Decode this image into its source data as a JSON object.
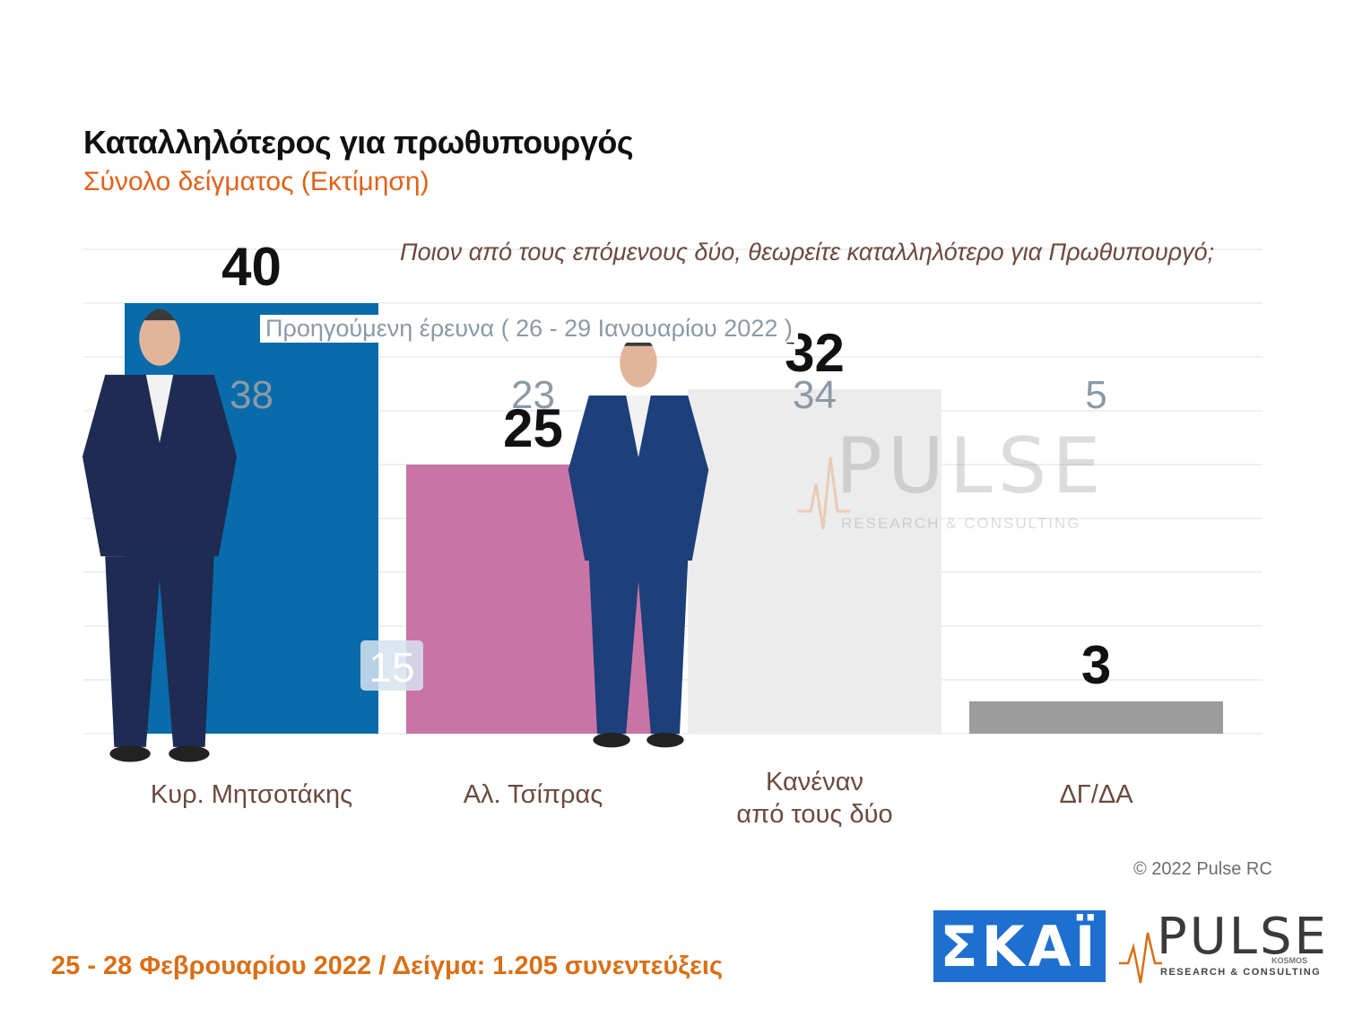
{
  "header": {
    "title": "Καταλληλότερος για πρωθυπουργός",
    "subtitle": "Σύνολο δείγματος   (Εκτίμηση)",
    "question": "Ποιον από τους επόμενους δύο, θεωρείτε καταλληλότερο για Πρωθυπουργό;",
    "previous_label": "Προηγούμενη έρευνα  ( 26 - 29 Ιανουαρίου  2022 )"
  },
  "chart_data": {
    "type": "bar",
    "categories": [
      "Κυρ. Μητσοτάκης",
      "Αλ. Τσίπρας",
      "Κανέναν από τους δύο",
      "ΔΓ/ΔΑ"
    ],
    "category_lines": [
      [
        "Κυρ. Μητσοτάκης"
      ],
      [
        "Αλ. Τσίπρας"
      ],
      [
        "Κανέναν",
        "από τους δύο"
      ],
      [
        "ΔΓ/ΔΑ"
      ]
    ],
    "values": [
      40,
      25,
      32,
      3
    ],
    "previous_values": [
      38,
      23,
      34,
      5
    ],
    "gap_label": "15",
    "bar_colors": [
      "#0a6bab",
      "#c974a7",
      "#ececec",
      "#9c9c9c"
    ],
    "ylim": [
      0,
      45
    ]
  },
  "footer": {
    "copyright": "© 2022 Pulse RC",
    "fieldwork": "25 - 28  Φεβρουαρίου  2022  /  Δείγμα:  1.205 συνεντεύξεις"
  },
  "logos": {
    "skai": "ΣΚΑΪ",
    "pulse_word": "PULSE",
    "pulse_tag": "RESEARCH & CONSULTING",
    "pulse_kosmos": "KOSMOS"
  }
}
